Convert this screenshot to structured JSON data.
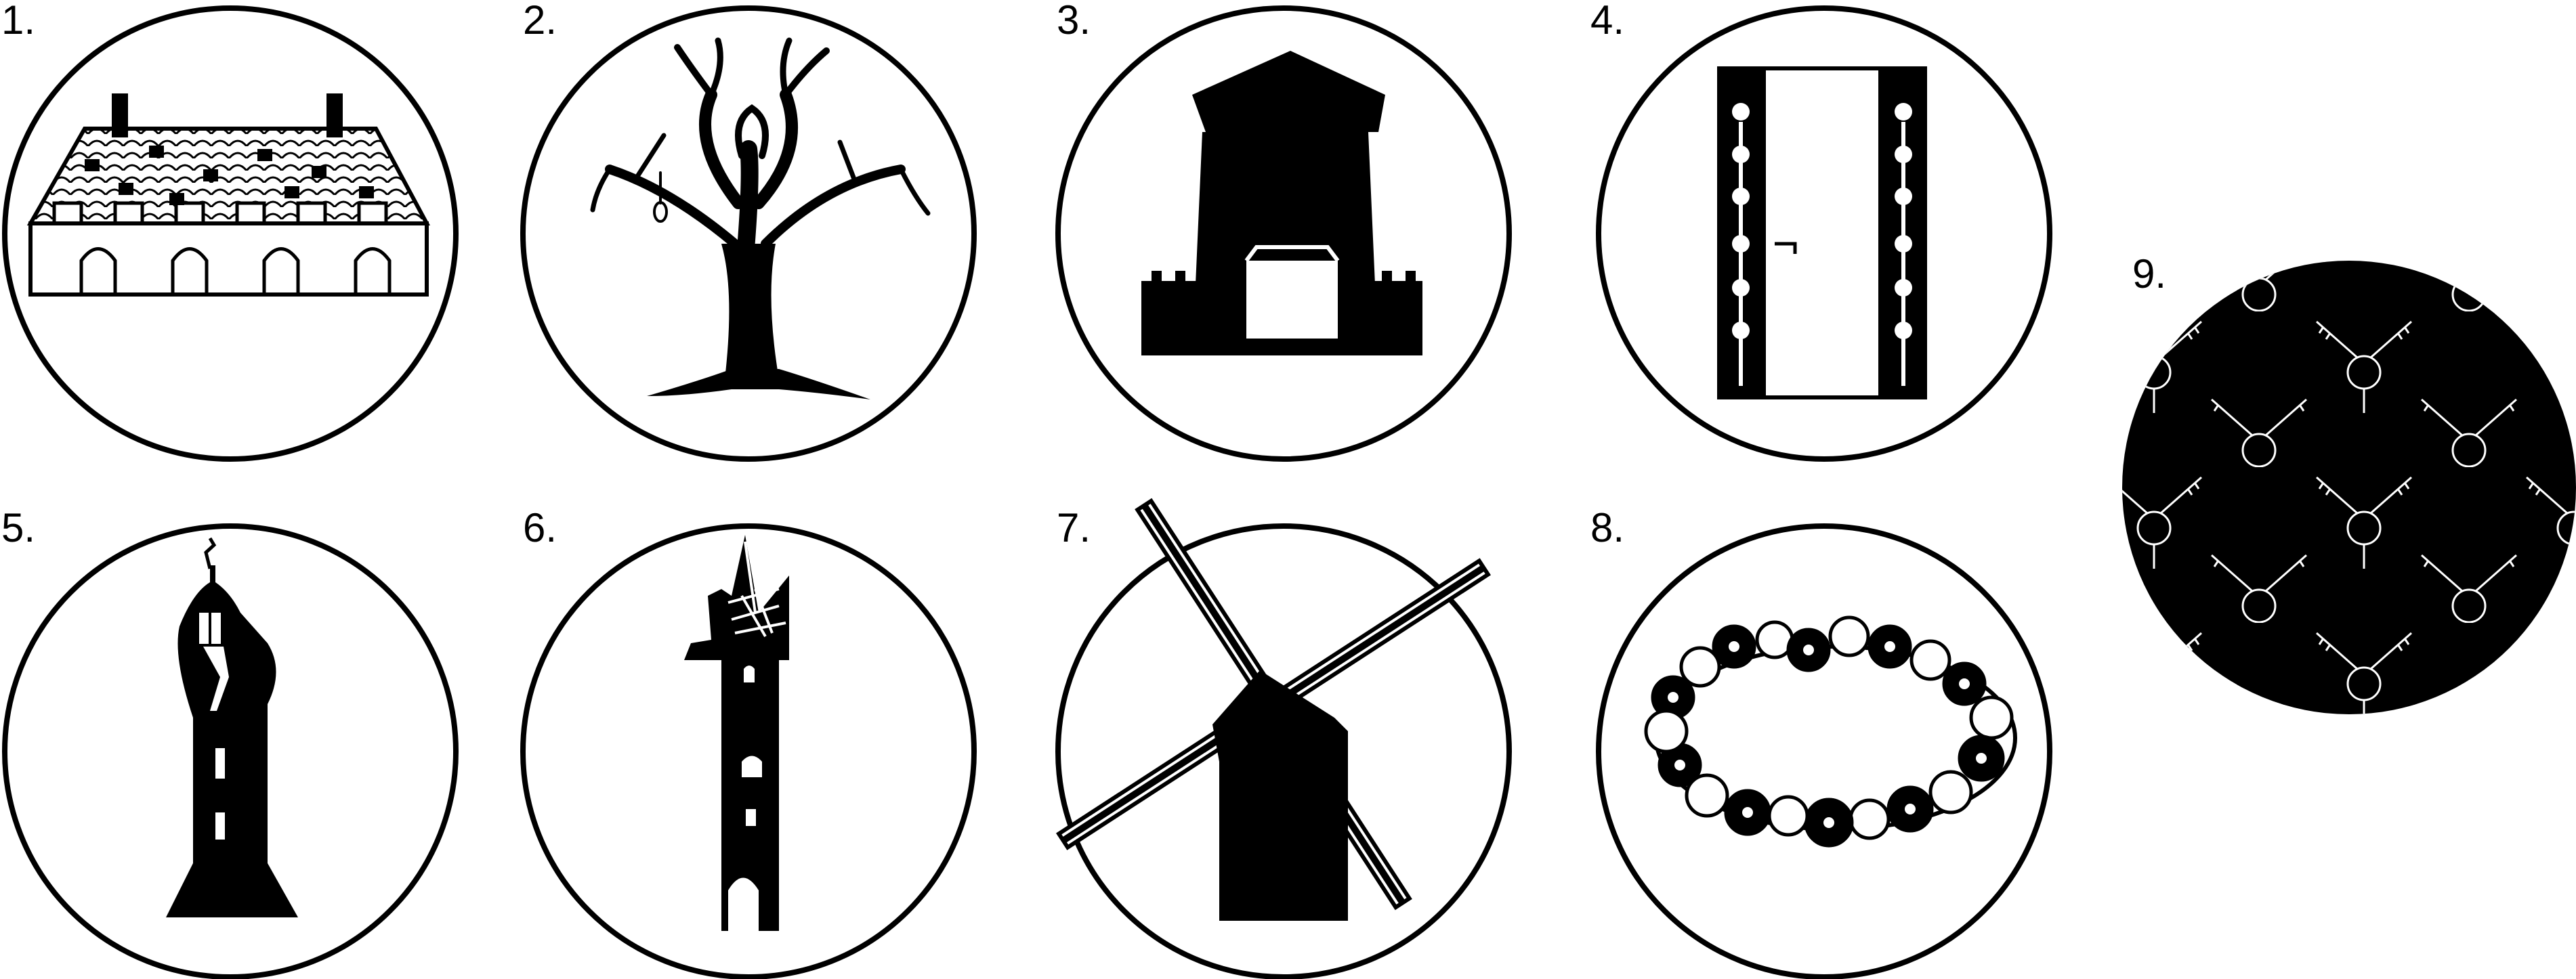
{
  "emblems": [
    {
      "number": "1.",
      "icon": "longhouse-icon"
    },
    {
      "number": "2.",
      "icon": "hanging-tree-icon"
    },
    {
      "number": "3.",
      "icon": "gate-tower-icon"
    },
    {
      "number": "4.",
      "icon": "ornate-door-icon"
    },
    {
      "number": "5.",
      "icon": "church-tower-icon"
    },
    {
      "number": "6.",
      "icon": "ruined-tower-icon"
    },
    {
      "number": "7.",
      "icon": "windmill-icon"
    },
    {
      "number": "8.",
      "icon": "flower-wreath-icon"
    },
    {
      "number": "9.",
      "icon": "keys-pattern-icon"
    }
  ],
  "colors": {
    "ink": "#000000",
    "paper": "#ffffff"
  }
}
